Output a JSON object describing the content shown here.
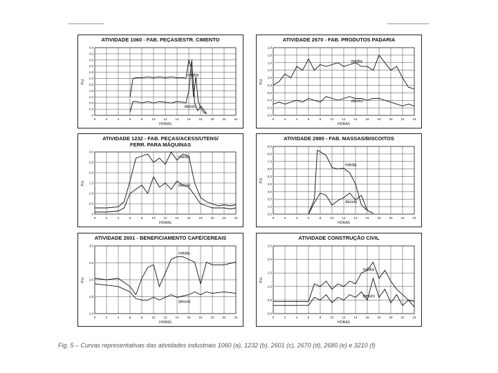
{
  "caption": "Fig. 5 – Curvas representativas das atividades industriais 1060 (a), 1232 (b), 2601 (c), 2670 (d), 2680 (e) e 3210 (f)",
  "colors": {
    "line": "#111111",
    "grid": "#444444"
  },
  "chart_data": [
    {
      "type": "line",
      "title": "ATIVIDADE 1060 - FAB. PEÇAS/ESTR. CIMENTO",
      "xlabel": "HORAS",
      "ylabel": "P.U.",
      "xlim": [
        0,
        24
      ],
      "ylim": [
        0,
        4.4
      ],
      "xticks": [
        "0",
        "2",
        "4",
        "6",
        "8",
        "10",
        "12",
        "14",
        "16",
        "18",
        "20",
        "22",
        "24"
      ],
      "yticks": [
        "0",
        "0.4",
        "0.8",
        "1.2",
        "1.6",
        "2.0",
        "2.4",
        "2.8",
        "3.2",
        "3.6",
        "4.0",
        "4.4"
      ],
      "series": [
        {
          "name": "média",
          "x": [
            6,
            6.5,
            7,
            8,
            9,
            10,
            11,
            12,
            13,
            14,
            15,
            15.5,
            16,
            16.4,
            16.8,
            17.2,
            17.6,
            18,
            18.5,
            19
          ],
          "y": [
            1.2,
            2.4,
            2.45,
            2.45,
            2.5,
            2.45,
            2.5,
            2.45,
            2.5,
            2.45,
            2.45,
            2.4,
            3.6,
            3.1,
            1.2,
            2.5,
            0.9,
            0.5,
            0.2,
            0.1
          ]
        },
        {
          "name": "desvio",
          "x": [
            6,
            6.5,
            7,
            8,
            9,
            10,
            11,
            12,
            13,
            14,
            15,
            15.5,
            16,
            16.5,
            17,
            17.5,
            18,
            18.5,
            19
          ],
          "y": [
            0.2,
            0.9,
            0.9,
            0.8,
            0.9,
            0.8,
            0.9,
            0.85,
            0.8,
            0.9,
            0.85,
            0.8,
            1.6,
            3.6,
            0.8,
            0.3,
            0.6,
            0.4,
            0.1
          ]
        }
      ]
    },
    {
      "type": "line",
      "title": "ATIVIDADE 2670 - FAB. PRODUTOS PADARIA",
      "xlabel": "HORAS",
      "ylabel": "P.U.",
      "xlim": [
        0,
        24
      ],
      "ylim": [
        0,
        1.8
      ],
      "xticks": [
        "0",
        "2",
        "4",
        "6",
        "8",
        "10",
        "12",
        "14",
        "16",
        "18",
        "20",
        "22",
        "24"
      ],
      "yticks": [
        "0,0",
        "0,2",
        "0,4",
        "0,6",
        "0,8",
        "1,0",
        "1,2",
        "1,4",
        "1,6",
        "1,8"
      ],
      "series": [
        {
          "name": "média",
          "x": [
            0,
            1,
            2,
            3,
            4,
            5,
            6,
            7,
            8,
            9,
            10,
            11,
            12,
            13,
            14,
            15,
            16,
            17,
            18,
            19,
            20,
            21,
            22,
            23,
            24
          ],
          "y": [
            0.8,
            0.9,
            1.1,
            1.0,
            1.3,
            1.2,
            1.5,
            1.2,
            1.35,
            1.3,
            1.35,
            1.4,
            1.3,
            1.35,
            1.4,
            1.3,
            1.3,
            1.2,
            1.6,
            1.4,
            1.2,
            1.3,
            1.0,
            0.75,
            0.7
          ]
        },
        {
          "name": "desvio",
          "x": [
            0,
            1,
            2,
            3,
            4,
            5,
            6,
            7,
            8,
            9,
            10,
            11,
            12,
            13,
            14,
            15,
            16,
            17,
            18,
            19,
            20,
            21,
            22,
            23,
            24
          ],
          "y": [
            0.3,
            0.35,
            0.3,
            0.35,
            0.4,
            0.35,
            0.45,
            0.4,
            0.35,
            0.5,
            0.45,
            0.4,
            0.45,
            0.5,
            0.45,
            0.45,
            0.4,
            0.45,
            0.45,
            0.4,
            0.35,
            0.3,
            0.25,
            0.3,
            0.25
          ]
        }
      ]
    },
    {
      "type": "line",
      "title": "ATIVIDADE 1232 - FAB. PEÇAS/ACESS/UTENS/\nFERR. PARA MÁQUINAS",
      "xlabel": "HORAS",
      "ylabel": "P.U.",
      "xlim": [
        0,
        24
      ],
      "ylim": [
        0,
        3.0
      ],
      "xticks": [
        "0",
        "2",
        "4",
        "6",
        "8",
        "10",
        "12",
        "14",
        "16",
        "18",
        "20",
        "22",
        "24"
      ],
      "yticks": [
        "0",
        "0.5",
        "1.0",
        "1.5",
        "2.0",
        "2.5",
        "3.0"
      ],
      "series": [
        {
          "name": "média",
          "x": [
            0,
            2,
            4,
            5,
            6,
            7,
            8,
            9,
            10,
            11,
            12,
            13,
            14,
            15,
            16,
            17,
            18,
            19,
            20,
            21,
            22,
            23,
            24
          ],
          "y": [
            0.3,
            0.3,
            0.35,
            0.6,
            1.6,
            2.7,
            2.8,
            2.9,
            2.5,
            2.7,
            2.4,
            3.0,
            2.6,
            2.9,
            2.8,
            1.5,
            0.8,
            0.6,
            0.5,
            0.4,
            0.45,
            0.4,
            0.45
          ]
        },
        {
          "name": "desvio",
          "x": [
            0,
            2,
            4,
            5,
            6,
            7,
            8,
            9,
            10,
            11,
            12,
            13,
            14,
            15,
            16,
            17,
            18,
            19,
            20,
            21,
            22,
            23,
            24
          ],
          "y": [
            0.1,
            0.1,
            0.15,
            0.3,
            1.0,
            1.2,
            1.4,
            1.0,
            1.8,
            1.3,
            1.5,
            1.2,
            1.6,
            1.4,
            1.3,
            0.9,
            0.5,
            0.4,
            0.3,
            0.3,
            0.3,
            0.25,
            0.3
          ]
        }
      ]
    },
    {
      "type": "line",
      "title": "ATIVIDADE 2880 - FAB. MASSAS/BISCOITOS",
      "xlabel": "HORAS",
      "ylabel": "P.U.",
      "xlim": [
        0,
        24
      ],
      "ylim": [
        0,
        9.0
      ],
      "xticks": [
        "0",
        "2",
        "4",
        "6",
        "8",
        "10",
        "12",
        "14",
        "16",
        "18",
        "20",
        "22",
        "24"
      ],
      "yticks": [
        "0,0",
        "1,0",
        "2,0",
        "3,0",
        "4,0",
        "5,0",
        "6,0",
        "7,0",
        "8,0",
        "9,0"
      ],
      "series": [
        {
          "name": "média",
          "x": [
            6,
            7,
            7.5,
            8,
            9,
            10,
            11,
            12,
            13,
            14,
            15,
            16,
            17
          ],
          "y": [
            0,
            2.0,
            8.5,
            8.3,
            7.8,
            6.2,
            6.0,
            6.1,
            5.5,
            4.0,
            1.2,
            0.5,
            0.1
          ]
        },
        {
          "name": "desvio",
          "x": [
            6,
            7,
            8,
            9,
            10,
            11,
            12,
            13,
            14,
            15,
            16,
            17
          ],
          "y": [
            0,
            1.5,
            2.8,
            2.5,
            1.2,
            1.8,
            2.2,
            2.8,
            1.9,
            2.5,
            0.5,
            0.1
          ]
        }
      ]
    },
    {
      "type": "line",
      "title": "ATIVIDADE 2601 - BENEFICIAMENTO CAFÉ/CEREAIS",
      "xlabel": "HORAS",
      "ylabel": "P.U.",
      "xlim": [
        0,
        24
      ],
      "ylim": [
        0.5,
        3.0
      ],
      "xticks": [
        "0",
        "2",
        "4",
        "6",
        "8",
        "10",
        "12",
        "14",
        "16",
        "18",
        "20",
        "22",
        "24"
      ],
      "yticks": [
        "1.0",
        "1.5",
        "2.0",
        "2.5",
        "3.0"
      ],
      "series": [
        {
          "name": "média",
          "x": [
            0,
            2,
            4,
            6,
            7,
            8,
            9,
            10,
            11,
            12,
            13,
            14,
            15,
            16,
            17,
            18,
            19,
            20,
            22,
            24
          ],
          "y": [
            1.8,
            1.75,
            1.8,
            1.5,
            1.2,
            1.8,
            2.2,
            2.3,
            1.5,
            2.0,
            2.5,
            2.6,
            2.6,
            2.5,
            2.4,
            1.6,
            2.4,
            2.3,
            2.3,
            2.4
          ]
        },
        {
          "name": "desvio",
          "x": [
            0,
            2,
            4,
            6,
            7,
            8,
            9,
            10,
            11,
            12,
            13,
            14,
            15,
            16,
            17,
            18,
            19,
            20,
            22,
            24
          ],
          "y": [
            1.6,
            1.55,
            1.5,
            1.3,
            1.05,
            1.0,
            1.0,
            1.1,
            1.0,
            1.1,
            1.2,
            1.1,
            1.15,
            1.2,
            1.3,
            1.2,
            1.3,
            1.25,
            1.3,
            1.25
          ]
        }
      ]
    },
    {
      "type": "line",
      "title": "ATIVIDADE CONSTRUÇÃO CIVIL",
      "xlabel": "HORAS",
      "ylabel": "P.U.",
      "xlim": [
        0,
        24
      ],
      "ylim": [
        0,
        2.5
      ],
      "xticks": [
        "0",
        "2",
        "4",
        "6",
        "8",
        "10",
        "12",
        "14",
        "16",
        "18",
        "20",
        "22",
        "24"
      ],
      "yticks": [
        "0,0",
        "0,5",
        "1,0",
        "1,5",
        "2,0",
        "2,5"
      ],
      "series": [
        {
          "name": "média",
          "x": [
            0,
            2,
            4,
            6,
            7,
            8,
            9,
            10,
            11,
            12,
            13,
            14,
            15,
            16,
            17,
            18,
            19,
            20,
            21,
            22,
            23,
            24
          ],
          "y": [
            0.45,
            0.45,
            0.45,
            0.45,
            1.1,
            1.0,
            1.2,
            0.9,
            1.1,
            1.0,
            1.2,
            1.1,
            1.5,
            1.6,
            1.9,
            1.3,
            1.6,
            1.2,
            0.9,
            0.7,
            0.5,
            0.45
          ]
        },
        {
          "name": "desvio",
          "x": [
            0,
            2,
            4,
            6,
            7,
            8,
            9,
            10,
            11,
            12,
            13,
            14,
            15,
            16,
            17,
            18,
            19,
            20,
            21,
            22,
            23,
            24
          ],
          "y": [
            0.3,
            0.3,
            0.3,
            0.3,
            0.6,
            0.5,
            0.7,
            0.4,
            0.6,
            0.5,
            0.7,
            0.6,
            0.8,
            0.5,
            1.3,
            0.6,
            0.9,
            0.4,
            0.7,
            0.3,
            0.5,
            0.25
          ]
        }
      ]
    }
  ]
}
